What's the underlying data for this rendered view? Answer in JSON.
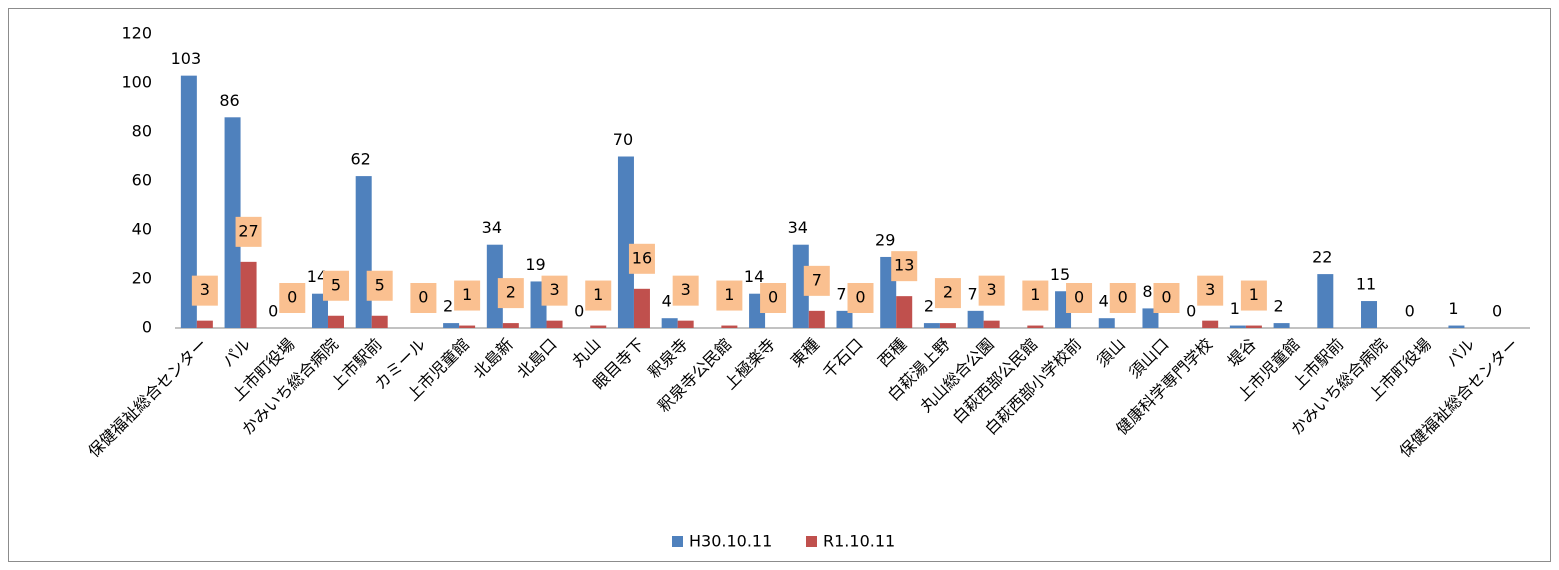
{
  "chart_data": {
    "type": "bar",
    "categories": [
      "保健福祉総合センター",
      "パル",
      "上市町役場",
      "かみいち総合病院",
      "上市駅前",
      "カミール",
      "上市児童館",
      "北島新",
      "北島口",
      "丸山",
      "眼目寺下",
      "釈泉寺",
      "釈泉寺公民館",
      "上極楽寺",
      "東種",
      "千石口",
      "西種",
      "白萩湯上野",
      "丸山総合公園",
      "白萩西部公民館",
      "白萩西部小学校前",
      "須山",
      "須山口",
      "健康科学専門学校",
      "堤谷",
      "上市児童館",
      "上市駅前",
      "かみいち総合病院",
      "上市町役場",
      "パル",
      "保健福祉総合センター"
    ],
    "series": [
      {
        "name": "H30.10.11",
        "color": "#4f81bd",
        "values": [
          103,
          86,
          0,
          14,
          62,
          null,
          2,
          34,
          19,
          0,
          70,
          4,
          null,
          14,
          34,
          7,
          29,
          2,
          7,
          null,
          15,
          4,
          8,
          0,
          1,
          2,
          22,
          11,
          0,
          1,
          0
        ]
      },
      {
        "name": "R1.10.11",
        "color": "#c0504d",
        "values": [
          3,
          27,
          0,
          5,
          5,
          0,
          1,
          2,
          3,
          1,
          16,
          3,
          1,
          0,
          7,
          0,
          13,
          2,
          3,
          1,
          0,
          0,
          0,
          3,
          1,
          null,
          null,
          null,
          null,
          null,
          null
        ]
      }
    ],
    "ylim": [
      0,
      120
    ],
    "yticks": [
      0,
      20,
      40,
      60,
      80,
      100,
      120
    ],
    "grid": false,
    "legend": "bottom"
  }
}
